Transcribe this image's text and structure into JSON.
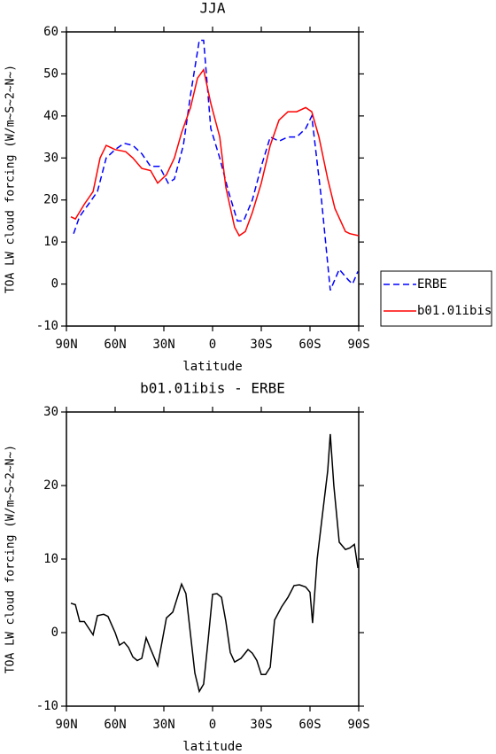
{
  "chart_data": [
    {
      "type": "line",
      "title": "JJA",
      "xlabel": "latitude",
      "ylabel": "TOA LW cloud forcing (W/m~S~2~N~)",
      "xlim": [
        90,
        -90
      ],
      "ylim": [
        -10,
        60
      ],
      "xticks": [
        {
          "value": 90,
          "label": "90N"
        },
        {
          "value": 60,
          "label": "60N"
        },
        {
          "value": 30,
          "label": "30N"
        },
        0,
        {
          "value": -30,
          "label": "30S"
        },
        {
          "value": -60,
          "label": "60S"
        },
        {
          "value": -90,
          "label": "90S"
        }
      ],
      "yticks": [
        -10,
        0,
        10,
        20,
        30,
        40,
        50,
        60
      ],
      "legend": "right",
      "series": [
        {
          "name": "ERBE",
          "color": "#0000ff",
          "dash": "dashed",
          "x": [
            85.6,
            82,
            76.4,
            70.9,
            65.5,
            60,
            54.5,
            49.1,
            43.6,
            38.2,
            32.7,
            27.3,
            23.5,
            18,
            13.6,
            8.2,
            5.5,
            1.1,
            -4.4,
            -9.8,
            -15.3,
            -19.1,
            -24.5,
            -30,
            -35.5,
            -40.9,
            -46.4,
            -51.8,
            -57.3,
            -61.1,
            -67.1,
            -72.5,
            -78,
            -83.5,
            -86.2,
            -89.5
          ],
          "values": [
            12,
            16,
            19,
            22,
            30,
            32,
            33.5,
            33,
            31,
            28,
            28,
            24,
            25,
            33,
            45,
            58,
            58,
            37,
            30,
            22,
            15,
            15,
            20,
            28,
            35,
            34,
            35,
            35,
            37,
            40,
            20,
            -1.5,
            3.5,
            1,
            0,
            3
          ]
        },
        {
          "name": "b01.01ibis",
          "color": "#ff0000",
          "dash": "solid",
          "x": [
            87.3,
            84.5,
            79,
            73.6,
            69.3,
            65.5,
            60,
            53.5,
            49.1,
            43.6,
            38.2,
            33.8,
            28.4,
            23.5,
            19.1,
            13.6,
            9.3,
            5.5,
            1.1,
            -4.4,
            -8.2,
            -13.6,
            -16.4,
            -20.2,
            -24.5,
            -30,
            -35.5,
            -40.9,
            -46.4,
            -51.8,
            -57.3,
            -61.1,
            -65.5,
            -70.9,
            -75.3,
            -81.8,
            -84.5,
            -90
          ],
          "values": [
            16,
            15.5,
            19,
            22,
            30,
            33,
            32,
            31.5,
            30,
            27.5,
            27,
            24,
            26,
            30,
            36,
            42,
            49,
            51,
            43,
            35,
            23,
            13.5,
            11.5,
            12.5,
            17,
            24,
            33,
            39,
            41,
            41,
            42,
            41,
            35,
            25,
            18,
            12.5,
            12,
            11.5
          ]
        }
      ]
    },
    {
      "type": "line",
      "title": "b01.01ibis - ERBE",
      "xlabel": "latitude",
      "ylabel": "TOA LW cloud forcing (W/m~S~2~N~)",
      "xlim": [
        90,
        -90
      ],
      "ylim": [
        -10,
        30
      ],
      "xticks": [
        {
          "value": 90,
          "label": "90N"
        },
        {
          "value": 60,
          "label": "60N"
        },
        {
          "value": 30,
          "label": "30N"
        },
        0,
        {
          "value": -30,
          "label": "30S"
        },
        {
          "value": -60,
          "label": "60S"
        },
        {
          "value": -90,
          "label": "90S"
        }
      ],
      "yticks": [
        -10,
        0,
        10,
        20,
        30
      ],
      "series": [
        {
          "color": "#000000",
          "dash": "solid",
          "x": [
            87.3,
            84.5,
            81.8,
            79,
            73.6,
            70.9,
            67.1,
            64.4,
            60,
            57.3,
            54.5,
            51.8,
            49.1,
            46.4,
            43.6,
            40.9,
            38.2,
            33.8,
            28.4,
            24.5,
            19.1,
            16.4,
            10.9,
            8.2,
            5.5,
            2.7,
            0,
            -2.7,
            -5.5,
            -8.2,
            -10.9,
            -13.6,
            -17.5,
            -21.8,
            -24.5,
            -27.3,
            -30,
            -32.7,
            -35.5,
            -38.2,
            -42.5,
            -46.4,
            -50.2,
            -53.5,
            -57.3,
            -60,
            -61.6,
            -64.4,
            -68.2,
            -70.9,
            -72.5,
            -74.7,
            -78,
            -81.8,
            -84.5,
            -87.3,
            -89.5
          ],
          "values": [
            4,
            3.8,
            1.5,
            1.5,
            -0.3,
            2.3,
            2.5,
            2.2,
            0,
            -1.7,
            -1.3,
            -2,
            -3.3,
            -3.8,
            -3.5,
            -0.7,
            -2.2,
            -4.5,
            2,
            2.8,
            6.6,
            5.3,
            -5.5,
            -8,
            -7,
            -1,
            5.2,
            5.3,
            4.8,
            1.5,
            -2.7,
            -4,
            -3.5,
            -2.3,
            -2.8,
            -3.8,
            -5.7,
            -5.7,
            -4.7,
            1.7,
            3.5,
            4.8,
            6.4,
            6.5,
            6.2,
            5.5,
            1.3,
            10,
            17,
            22,
            27,
            20,
            12.3,
            11.3,
            11.5,
            12,
            8.8
          ]
        }
      ]
    }
  ]
}
